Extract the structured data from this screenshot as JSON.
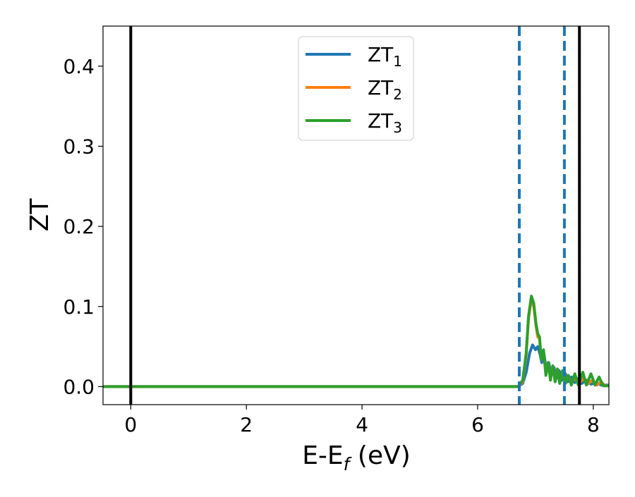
{
  "chart_data": {
    "type": "line",
    "xlabel": "E-E",
    "xlabel_sub": "f",
    "xlabel_unit": " (eV)",
    "ylabel": "ZT",
    "xlim": [
      -0.48,
      8.27
    ],
    "ylim": [
      -0.0225,
      0.45
    ],
    "xticks": [
      0,
      2,
      4,
      6,
      8
    ],
    "xtick_labels": [
      "0",
      "2",
      "4",
      "6",
      "8"
    ],
    "yticks": [
      0.0,
      0.1,
      0.2,
      0.3,
      0.4
    ],
    "ytick_labels": [
      "0.0",
      "0.1",
      "0.2",
      "0.3",
      "0.4"
    ],
    "grid": false,
    "legend_position": "top-center",
    "vertical_lines": [
      {
        "x": 0.0,
        "style": "solid",
        "color": "#000000"
      },
      {
        "x": 7.76,
        "style": "solid",
        "color": "#000000"
      },
      {
        "x": 6.72,
        "style": "dashed",
        "color": "#1f77b4"
      },
      {
        "x": 7.5,
        "style": "dashed",
        "color": "#1f77b4"
      }
    ],
    "series": [
      {
        "name": "ZT",
        "subscript": "1",
        "color": "#1f77b4",
        "points": [
          [
            -0.48,
            0
          ],
          [
            6.7,
            0
          ],
          [
            6.78,
            0.004
          ],
          [
            6.84,
            0.018
          ],
          [
            6.9,
            0.042
          ],
          [
            6.95,
            0.052
          ],
          [
            7.0,
            0.046
          ],
          [
            7.04,
            0.05
          ],
          [
            7.08,
            0.04
          ],
          [
            7.11,
            0.03
          ],
          [
            7.15,
            0.04
          ],
          [
            7.18,
            0.024
          ],
          [
            7.23,
            0.03
          ],
          [
            7.27,
            0.014
          ],
          [
            7.32,
            0.024
          ],
          [
            7.36,
            0.01
          ],
          [
            7.41,
            0.02
          ],
          [
            7.46,
            0.008
          ],
          [
            7.52,
            0.016
          ],
          [
            7.56,
            0.006
          ],
          [
            7.62,
            0.012
          ],
          [
            7.68,
            0.005
          ],
          [
            7.74,
            0.01
          ],
          [
            7.8,
            0.004
          ],
          [
            7.88,
            0.008
          ],
          [
            7.96,
            0.003
          ],
          [
            8.05,
            0.005
          ],
          [
            8.14,
            0.002
          ],
          [
            8.27,
            0.002
          ]
        ]
      },
      {
        "name": "ZT",
        "subscript": "2",
        "color": "#ff7f0e",
        "points": [
          [
            -0.48,
            0
          ],
          [
            6.7,
            0
          ],
          [
            6.78,
            0.006
          ],
          [
            6.84,
            0.04
          ],
          [
            6.88,
            0.085
          ],
          [
            6.93,
            0.11
          ],
          [
            6.97,
            0.1
          ],
          [
            7.01,
            0.075
          ],
          [
            7.04,
            0.062
          ],
          [
            7.07,
            0.06
          ],
          [
            7.1,
            0.035
          ],
          [
            7.14,
            0.044
          ],
          [
            7.18,
            0.016
          ],
          [
            7.22,
            0.03
          ],
          [
            7.26,
            0.01
          ],
          [
            7.3,
            0.026
          ],
          [
            7.34,
            0.008
          ],
          [
            7.38,
            0.022
          ],
          [
            7.42,
            0.006
          ],
          [
            7.47,
            0.018
          ],
          [
            7.52,
            0.005
          ],
          [
            7.57,
            0.014
          ],
          [
            7.62,
            0.004
          ],
          [
            7.68,
            0.012
          ],
          [
            7.74,
            0.003
          ],
          [
            7.82,
            0.01
          ],
          [
            7.9,
            0.003
          ],
          [
            7.98,
            0.008
          ],
          [
            8.06,
            0.002
          ],
          [
            8.14,
            0.006
          ],
          [
            8.2,
            0.001
          ],
          [
            8.27,
            0.001
          ]
        ]
      },
      {
        "name": "ZT",
        "subscript": "3",
        "color": "#2ca02c",
        "points": [
          [
            -0.48,
            0
          ],
          [
            6.7,
            0
          ],
          [
            6.78,
            0.008
          ],
          [
            6.84,
            0.042
          ],
          [
            6.88,
            0.088
          ],
          [
            6.93,
            0.113
          ],
          [
            6.97,
            0.104
          ],
          [
            7.01,
            0.078
          ],
          [
            7.04,
            0.066
          ],
          [
            7.07,
            0.062
          ],
          [
            7.1,
            0.034
          ],
          [
            7.14,
            0.046
          ],
          [
            7.18,
            0.014
          ],
          [
            7.22,
            0.03
          ],
          [
            7.26,
            0.008
          ],
          [
            7.3,
            0.026
          ],
          [
            7.34,
            0.006
          ],
          [
            7.38,
            0.022
          ],
          [
            7.42,
            0.004
          ],
          [
            7.47,
            0.02
          ],
          [
            7.52,
            0.004
          ],
          [
            7.57,
            0.014
          ],
          [
            7.62,
            0.002
          ],
          [
            7.68,
            0.016
          ],
          [
            7.74,
            0.002
          ],
          [
            7.82,
            0.018
          ],
          [
            7.88,
            0.002
          ],
          [
            7.96,
            0.016
          ],
          [
            8.03,
            0.002
          ],
          [
            8.1,
            0.012
          ],
          [
            8.17,
            0.001
          ],
          [
            8.27,
            0.001
          ]
        ]
      }
    ]
  }
}
